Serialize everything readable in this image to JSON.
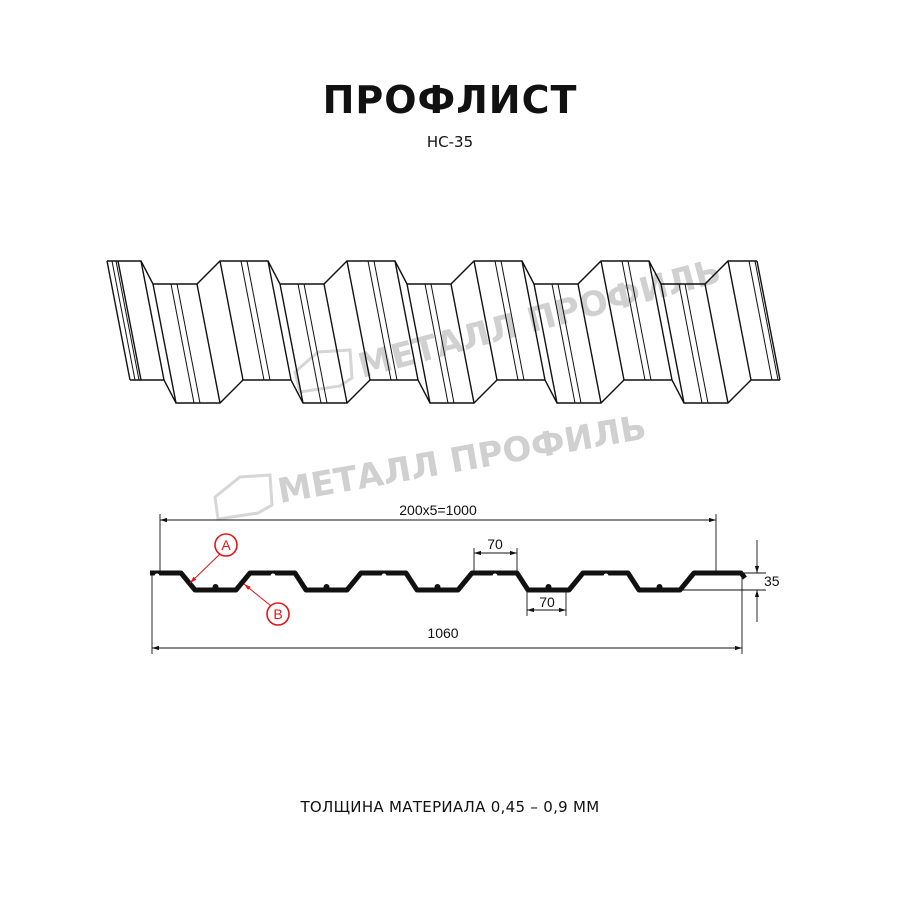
{
  "header": {
    "title": "ПРОФЛИСТ",
    "subtitle": "НС-35"
  },
  "watermark": {
    "text": "МЕТАЛЛ ПРОФИЛЬ",
    "color": "#d0d0d0"
  },
  "drawing": {
    "dimensions": {
      "pitch_total": "200x5=1000",
      "top_flat": "70",
      "bottom_flat": "70",
      "height": "35",
      "total_width": "1060"
    },
    "markers": [
      {
        "label": "A"
      },
      {
        "label": "B"
      }
    ],
    "marker_color": "#e0161b",
    "line_color": "#111111"
  },
  "footer": {
    "thickness": "ТОЛЩИНА МАТЕРИАЛА 0,45 – 0,9 ММ"
  }
}
